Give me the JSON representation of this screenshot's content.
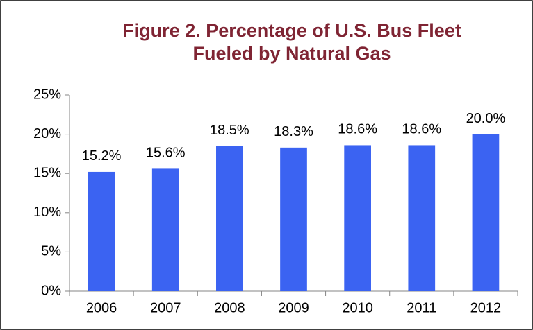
{
  "chart_data": {
    "type": "bar",
    "title": [
      "Figure 2. Percentage of U.S. Bus Fleet",
      "Fueled by Natural Gas"
    ],
    "categories": [
      "2006",
      "2007",
      "2008",
      "2009",
      "2010",
      "2011",
      "2012"
    ],
    "values": [
      15.2,
      15.6,
      18.5,
      18.3,
      18.6,
      18.6,
      20.0
    ],
    "value_labels": [
      "15.2%",
      "15.6%",
      "18.5%",
      "18.3%",
      "18.6%",
      "18.6%",
      "20.0%"
    ],
    "color": "#3b63f2",
    "ylim": [
      0,
      25
    ],
    "yticks": [
      {
        "value": 0,
        "label": "0%"
      },
      {
        "value": 5,
        "label": "5%"
      },
      {
        "value": 10,
        "label": "10%"
      },
      {
        "value": 15,
        "label": "15%"
      },
      {
        "value": 20,
        "label": "20%"
      },
      {
        "value": 25,
        "label": "25%"
      }
    ],
    "grid": false
  }
}
